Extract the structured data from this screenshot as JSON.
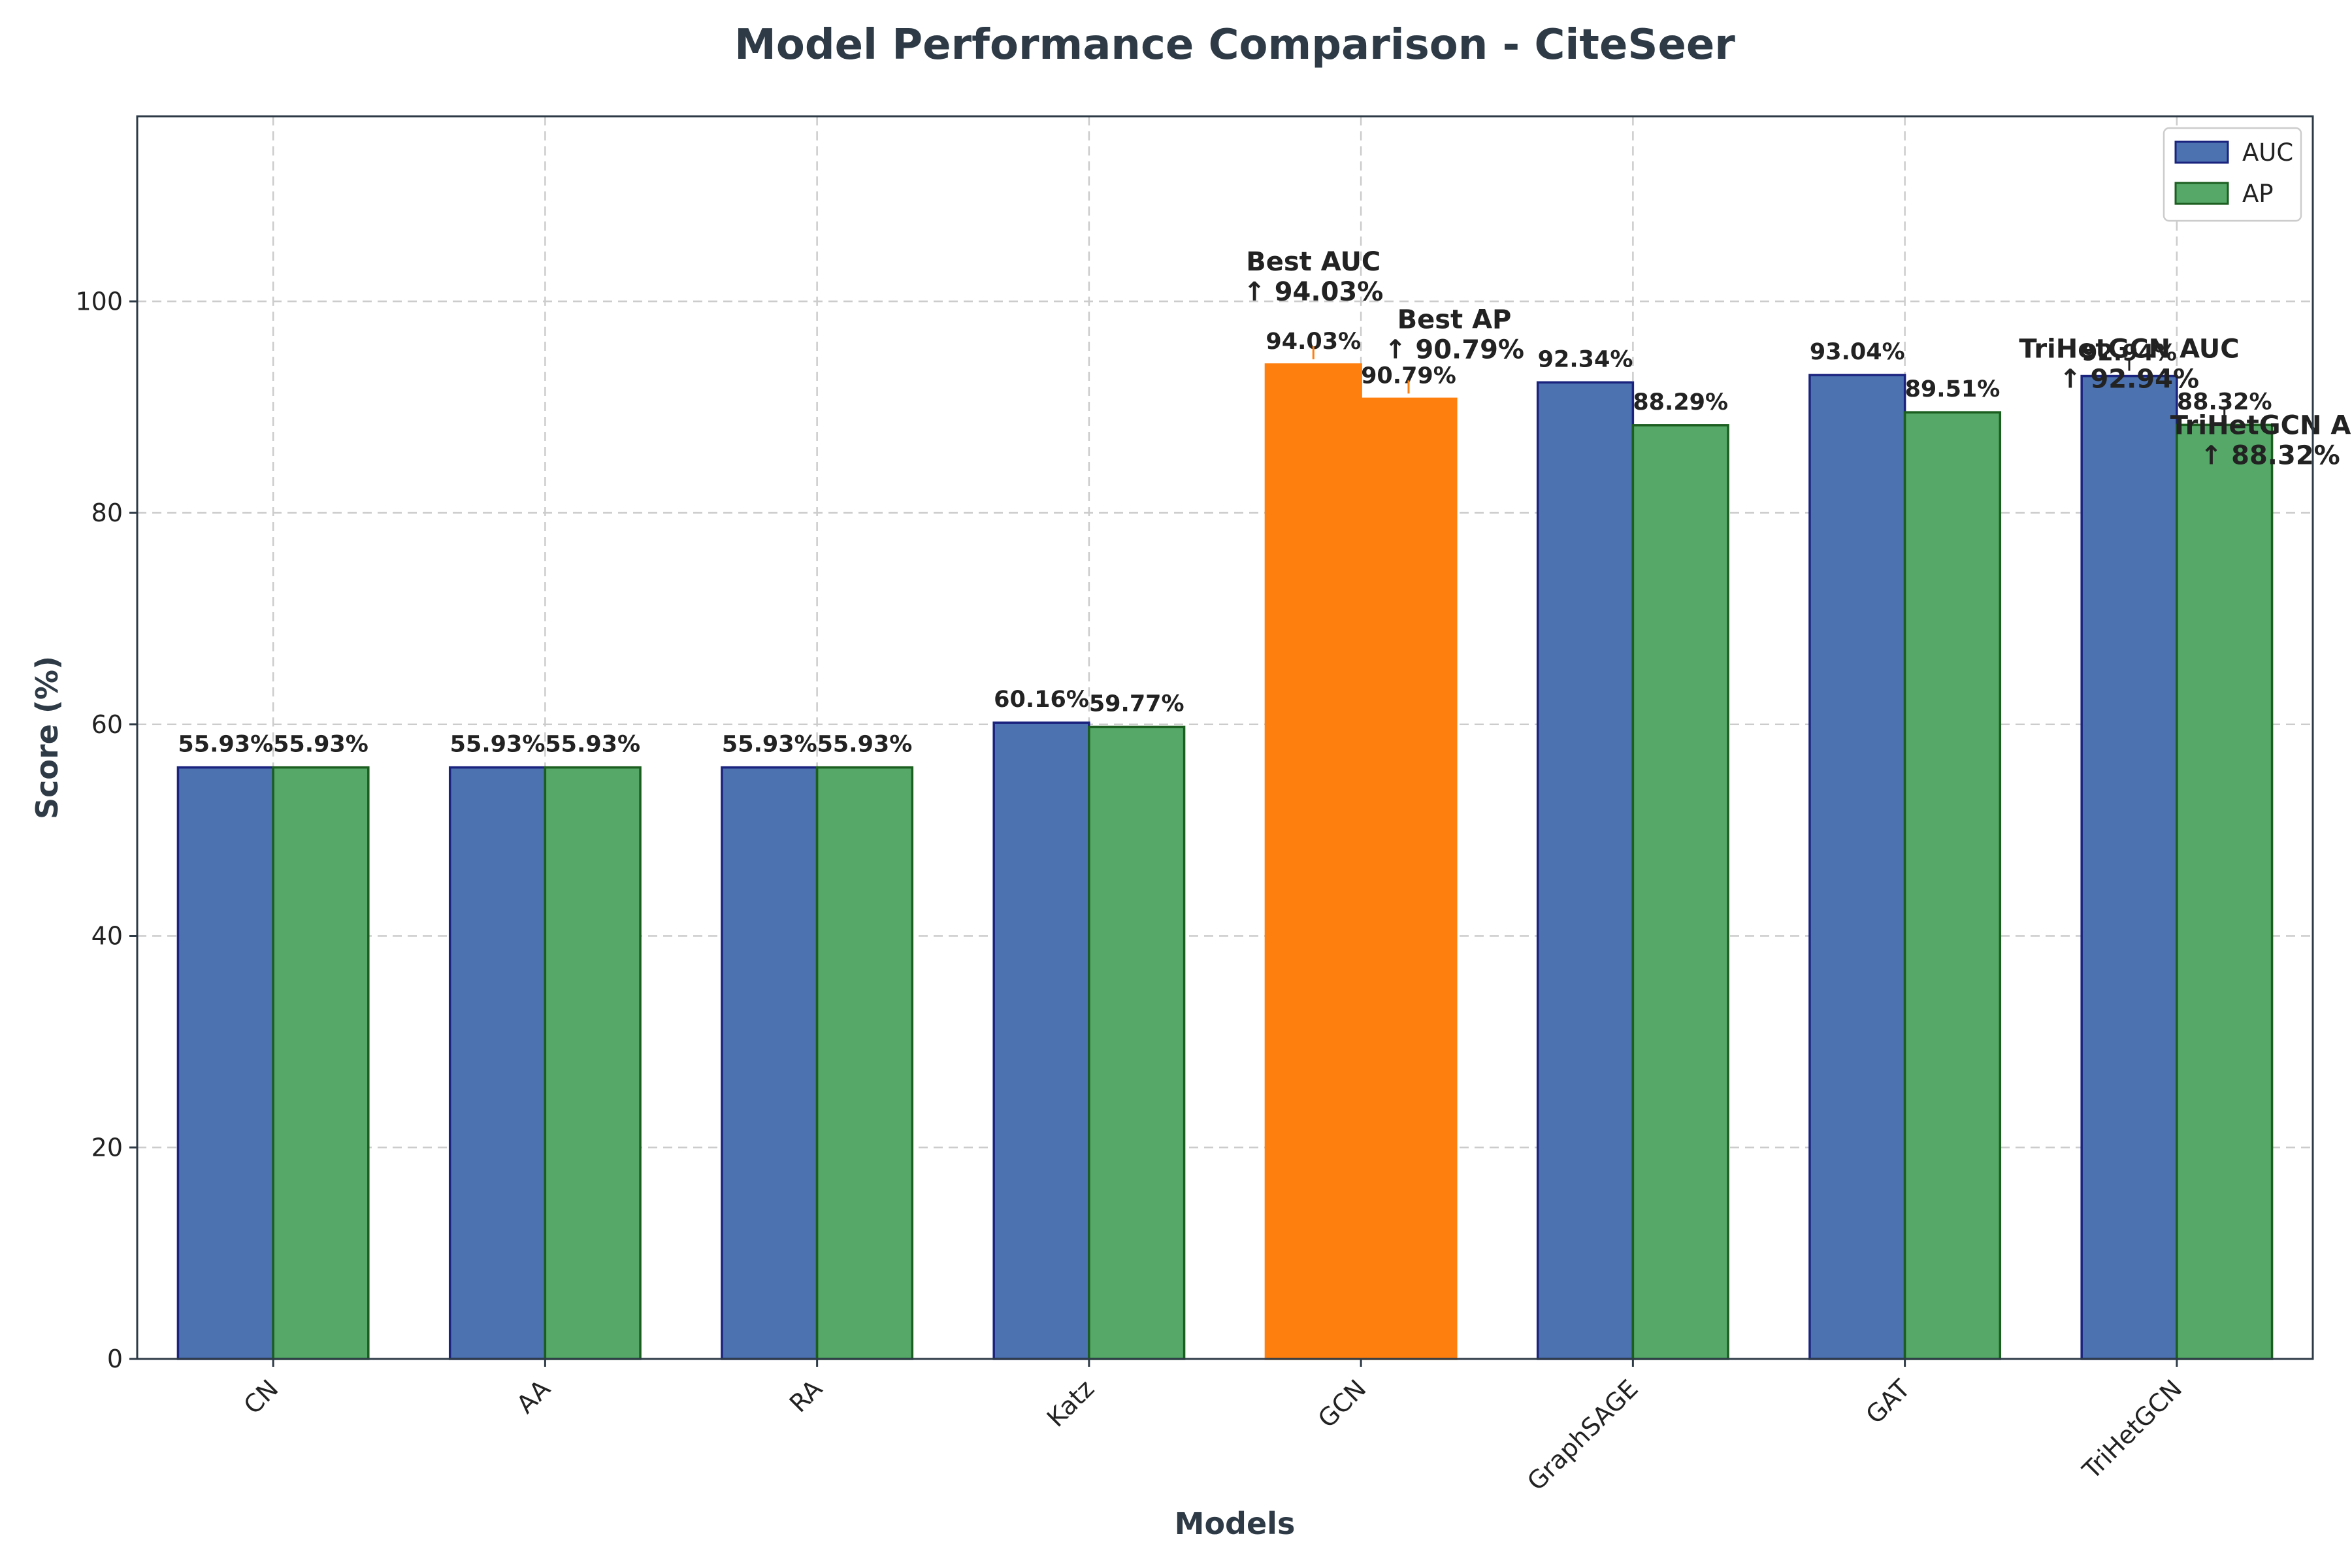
{
  "chart_data": {
    "type": "bar",
    "title": "Model Performance Comparison - CiteSeer",
    "xlabel": "Models",
    "ylabel": "Score (%)",
    "ylim": [
      0,
      117.5
    ],
    "yticks": [
      0,
      20,
      40,
      60,
      80,
      100
    ],
    "grid": true,
    "legend_position": "top-right",
    "categories": [
      "CN",
      "AA",
      "RA",
      "Katz",
      "GCN",
      "GraphSAGE",
      "GAT",
      "TriHetGCN"
    ],
    "series": [
      {
        "name": "AUC",
        "color": "#4c72b0",
        "edge_color": "#1a237e",
        "values": [
          55.93,
          55.93,
          55.93,
          60.16,
          94.03,
          92.34,
          93.04,
          92.94
        ],
        "labels": [
          "55.93%",
          "55.93%",
          "55.93%",
          "60.16%",
          "94.03%",
          "92.34%",
          "93.04%",
          "92.94%"
        ]
      },
      {
        "name": "AP",
        "color": "#55a868",
        "edge_color": "#1b5e20",
        "values": [
          55.93,
          55.93,
          55.93,
          59.77,
          90.79,
          88.29,
          89.51,
          88.32
        ],
        "labels": [
          "55.93%",
          "55.93%",
          "55.93%",
          "59.77%",
          "90.79%",
          "88.29%",
          "89.51%",
          "88.32%"
        ]
      }
    ],
    "highlight": {
      "category": "GCN",
      "color": "#ff7f0e"
    },
    "annotations": [
      {
        "title": "Best AUC",
        "text": "↑ 94.03%",
        "category": "GCN",
        "series": "AUC",
        "value": 94.03
      },
      {
        "title": "Best AP",
        "text": "↑ 90.79%",
        "category": "GCN",
        "series": "AP",
        "value": 90.79
      },
      {
        "title": "TriHetGCN AUC",
        "text": "↑ 92.94%",
        "category": "TriHetGCN",
        "series": "AUC",
        "value": 92.94
      },
      {
        "title": "TriHetGCN AP",
        "text": "↑ 88.32%",
        "category": "TriHetGCN",
        "series": "AP",
        "value": 88.32
      }
    ]
  }
}
